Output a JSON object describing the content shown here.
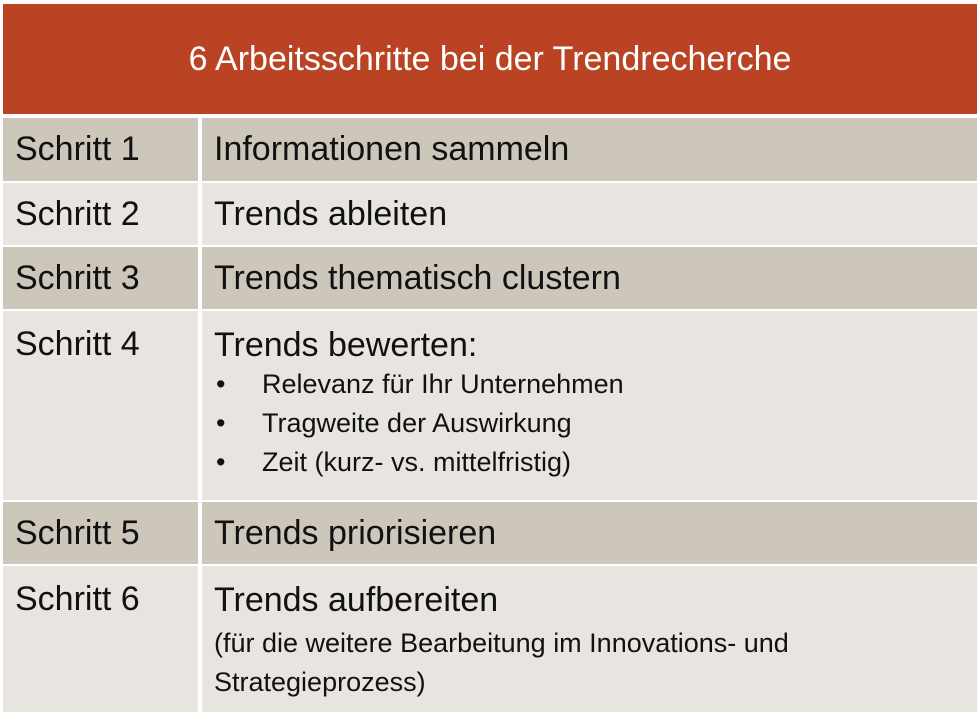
{
  "title": "6 Arbeitsschritte bei der Trendrecherche",
  "bullet_char": "•",
  "colors": {
    "header": "#b94322",
    "row_dark": "#cdc6ba",
    "row_light": "#e8e5e1"
  },
  "rows": [
    {
      "step": "Schritt 1",
      "desc": "Informationen sammeln"
    },
    {
      "step": "Schritt 2",
      "desc": "Trends ableiten"
    },
    {
      "step": "Schritt 3",
      "desc": "Trends thematisch clustern"
    },
    {
      "step": "Schritt 4",
      "desc": "Trends bewerten:",
      "bullets": [
        "Relevanz für Ihr Unternehmen",
        "Tragweite der Auswirkung",
        "Zeit (kurz- vs. mittelfristig)"
      ]
    },
    {
      "step": "Schritt 5",
      "desc": "Trends priorisieren"
    },
    {
      "step": "Schritt 6",
      "desc": "Trends aufbereiten",
      "note": "(für die weitere Bearbeitung im Innovations- und Strategieprozess)"
    }
  ]
}
